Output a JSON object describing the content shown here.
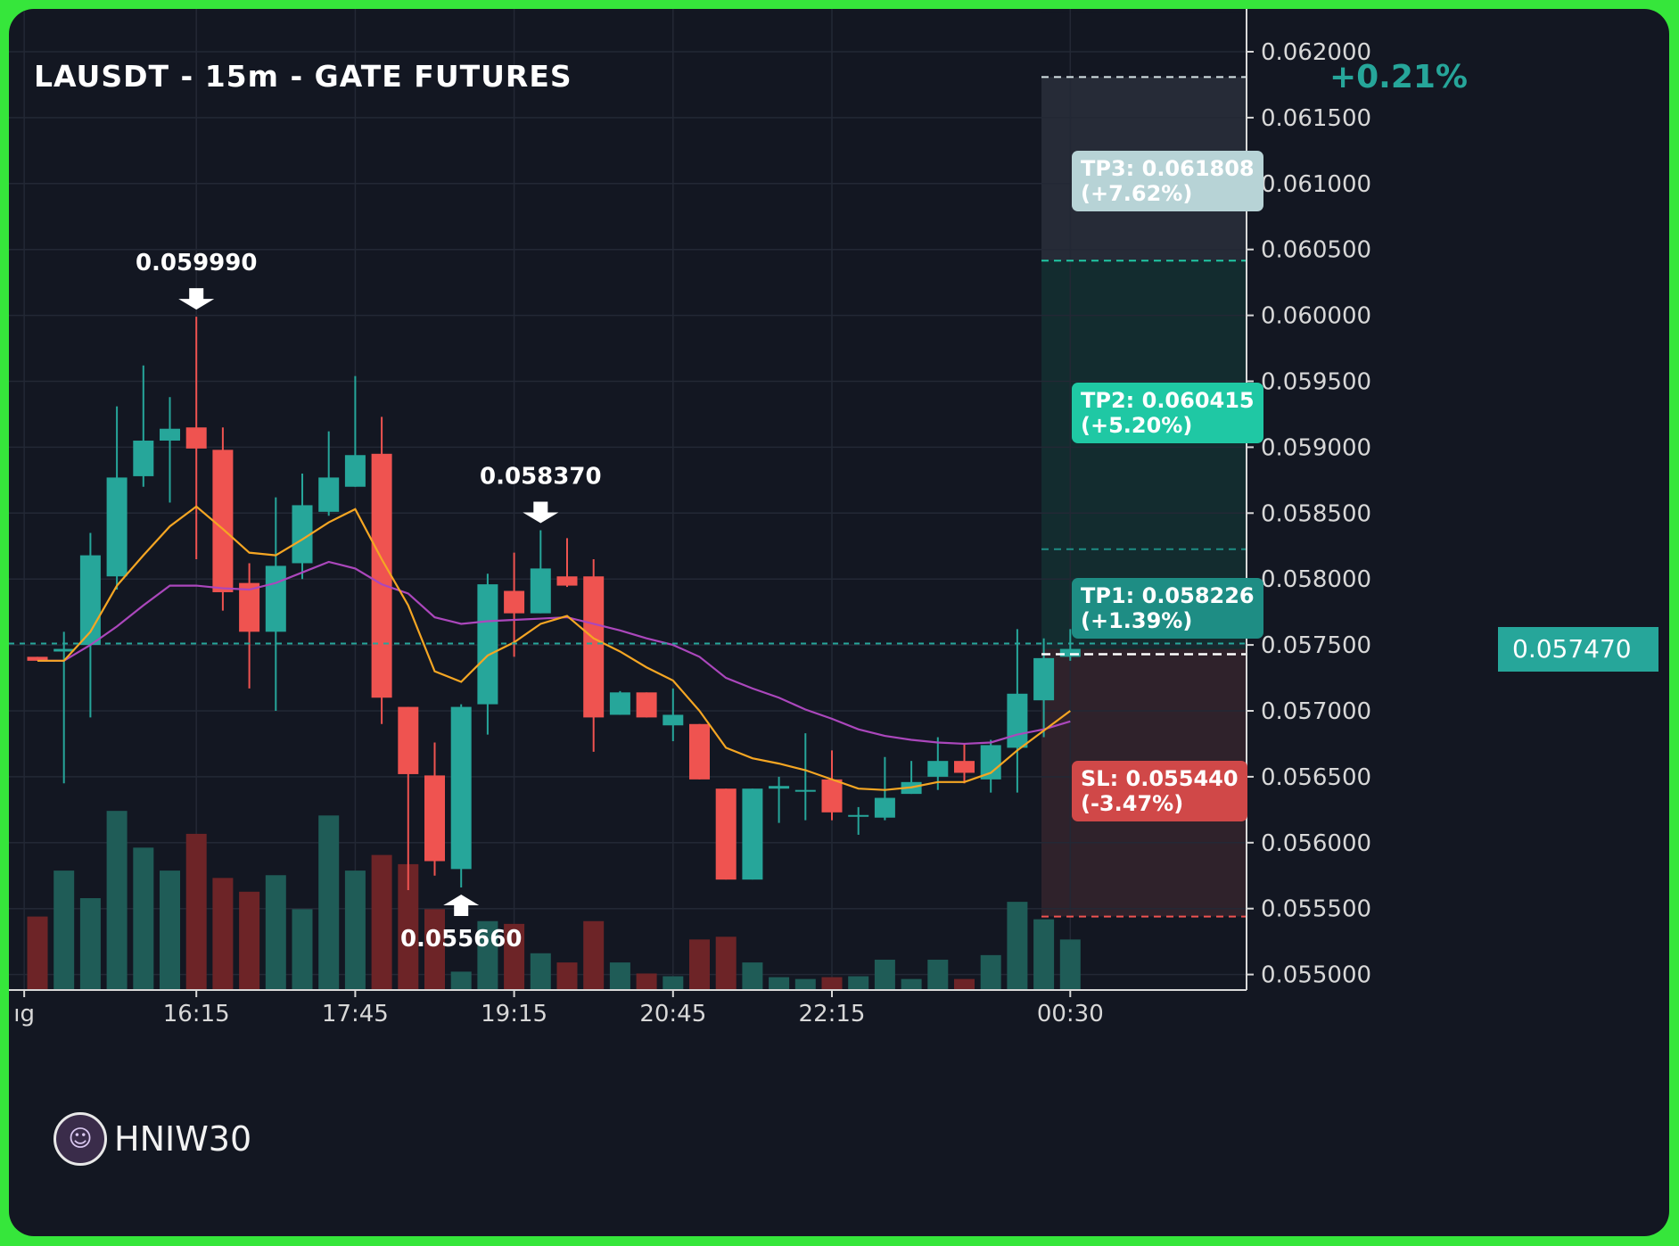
{
  "header": {
    "title": "LAUSDT - 15m - GATE FUTURES",
    "change": "+0.21%"
  },
  "watermark": {
    "name": "HNIW30",
    "avatar_icon": "avatar-icon"
  },
  "current_price": "0.057470",
  "targets": [
    {
      "label": "TP3: 0.061808\n(+7.62%)",
      "price": 0.061808,
      "color": "#b7d3d6"
    },
    {
      "label": "TP2: 0.060415\n(+5.20%)",
      "price": 0.060415,
      "color": "#1fc8a4"
    },
    {
      "label": "TP1: 0.058226\n(+1.39%)",
      "price": 0.058226,
      "color": "#1e8d84"
    },
    {
      "label": "SL: 0.055440\n(-3.47%)",
      "price": 0.05544,
      "color": "#d04848"
    }
  ],
  "markers": [
    {
      "label": "0.059990",
      "index": 6,
      "price": 0.05999,
      "direction": "down"
    },
    {
      "label": "0.058370",
      "index": 19,
      "price": 0.05837,
      "direction": "down"
    },
    {
      "label": "0.055660",
      "index": 16,
      "price": 0.05566,
      "direction": "up"
    }
  ],
  "chart_data": {
    "type": "candlestick",
    "ylim": [
      0.0548,
      0.0623
    ],
    "y_ticks": [
      "0.062000",
      "0.061500",
      "0.061000",
      "0.060500",
      "0.060000",
      "0.059500",
      "0.059000",
      "0.058500",
      "0.058000",
      "0.057500",
      "0.057000",
      "0.056500",
      "0.056000",
      "0.055500",
      "0.055000"
    ],
    "x_ticks": [
      {
        "label": "ıg",
        "index": -0.5
      },
      {
        "label": "16:15",
        "index": 6
      },
      {
        "label": "17:45",
        "index": 12
      },
      {
        "label": "19:15",
        "index": 18
      },
      {
        "label": "20:45",
        "index": 24
      },
      {
        "label": "22:15",
        "index": 30
      },
      {
        "label": "00:30",
        "index": 39
      }
    ],
    "candles": [
      {
        "o": 0.05741,
        "h": 0.05741,
        "l": 0.05738,
        "c": 0.05738,
        "v": 8
      },
      {
        "o": 0.05745,
        "h": 0.0576,
        "l": 0.05645,
        "c": 0.05747,
        "v": 13
      },
      {
        "o": 0.0575,
        "h": 0.05835,
        "l": 0.05695,
        "c": 0.05818,
        "v": 10
      },
      {
        "o": 0.05802,
        "h": 0.05931,
        "l": 0.05792,
        "c": 0.05877,
        "v": 19.5
      },
      {
        "o": 0.05878,
        "h": 0.05962,
        "l": 0.0587,
        "c": 0.05905,
        "v": 15.5
      },
      {
        "o": 0.05905,
        "h": 0.05938,
        "l": 0.05858,
        "c": 0.05914,
        "v": 13
      },
      {
        "o": 0.05915,
        "h": 0.05999,
        "l": 0.05815,
        "c": 0.05899,
        "v": 17
      },
      {
        "o": 0.05898,
        "h": 0.05915,
        "l": 0.05776,
        "c": 0.0579,
        "v": 12.2
      },
      {
        "o": 0.05797,
        "h": 0.05812,
        "l": 0.05717,
        "c": 0.0576,
        "v": 10.7
      },
      {
        "o": 0.0576,
        "h": 0.05862,
        "l": 0.057,
        "c": 0.0581,
        "v": 12.5
      },
      {
        "o": 0.05812,
        "h": 0.0588,
        "l": 0.058,
        "c": 0.05856,
        "v": 8.8
      },
      {
        "o": 0.05851,
        "h": 0.05912,
        "l": 0.05848,
        "c": 0.05877,
        "v": 19
      },
      {
        "o": 0.0587,
        "h": 0.05954,
        "l": 0.0587,
        "c": 0.05894,
        "v": 13
      },
      {
        "o": 0.05895,
        "h": 0.05923,
        "l": 0.0569,
        "c": 0.0571,
        "v": 14.7
      },
      {
        "o": 0.05703,
        "h": 0.05703,
        "l": 0.05564,
        "c": 0.05652,
        "v": 13.7
      },
      {
        "o": 0.05651,
        "h": 0.05676,
        "l": 0.05575,
        "c": 0.05586,
        "v": 8.8
      },
      {
        "o": 0.0558,
        "h": 0.05705,
        "l": 0.05566,
        "c": 0.05703,
        "v": 2
      },
      {
        "o": 0.05705,
        "h": 0.05804,
        "l": 0.05682,
        "c": 0.05796,
        "v": 7.5
      },
      {
        "o": 0.05791,
        "h": 0.0582,
        "l": 0.05741,
        "c": 0.05774,
        "v": 7.2
      },
      {
        "o": 0.05774,
        "h": 0.05837,
        "l": 0.05774,
        "c": 0.05808,
        "v": 4
      },
      {
        "o": 0.05802,
        "h": 0.05831,
        "l": 0.05794,
        "c": 0.05795,
        "v": 3
      },
      {
        "o": 0.05802,
        "h": 0.05815,
        "l": 0.05669,
        "c": 0.05695,
        "v": 7.5
      },
      {
        "o": 0.05697,
        "h": 0.05715,
        "l": 0.05697,
        "c": 0.05714,
        "v": 3
      },
      {
        "o": 0.05714,
        "h": 0.05714,
        "l": 0.05695,
        "c": 0.05695,
        "v": 1.8
      },
      {
        "o": 0.05689,
        "h": 0.05717,
        "l": 0.05677,
        "c": 0.05697,
        "v": 1.5
      },
      {
        "o": 0.0569,
        "h": 0.0569,
        "l": 0.05648,
        "c": 0.05648,
        "v": 5.5
      },
      {
        "o": 0.05641,
        "h": 0.05641,
        "l": 0.05572,
        "c": 0.05572,
        "v": 5.8
      },
      {
        "o": 0.05572,
        "h": 0.05641,
        "l": 0.05572,
        "c": 0.05641,
        "v": 3
      },
      {
        "o": 0.05641,
        "h": 0.0565,
        "l": 0.05615,
        "c": 0.05643,
        "v": 1.4
      },
      {
        "o": 0.0564,
        "h": 0.05683,
        "l": 0.05617,
        "c": 0.0564,
        "v": 1.2
      },
      {
        "o": 0.05648,
        "h": 0.0567,
        "l": 0.05617,
        "c": 0.05623,
        "v": 1.4
      },
      {
        "o": 0.0562,
        "h": 0.05627,
        "l": 0.05606,
        "c": 0.05621,
        "v": 1.5
      },
      {
        "o": 0.05619,
        "h": 0.05665,
        "l": 0.05617,
        "c": 0.05634,
        "v": 3.3
      },
      {
        "o": 0.05637,
        "h": 0.05662,
        "l": 0.05637,
        "c": 0.05646,
        "v": 1.2
      },
      {
        "o": 0.0565,
        "h": 0.0568,
        "l": 0.0564,
        "c": 0.05662,
        "v": 3.3
      },
      {
        "o": 0.05662,
        "h": 0.05675,
        "l": 0.05645,
        "c": 0.05653,
        "v": 1.2
      },
      {
        "o": 0.05648,
        "h": 0.05678,
        "l": 0.05638,
        "c": 0.05674,
        "v": 3.8
      },
      {
        "o": 0.05672,
        "h": 0.05762,
        "l": 0.05638,
        "c": 0.05713,
        "v": 9.6
      },
      {
        "o": 0.05708,
        "h": 0.05755,
        "l": 0.0568,
        "c": 0.0574,
        "v": 7.7
      },
      {
        "o": 0.05741,
        "h": 0.05762,
        "l": 0.05738,
        "c": 0.05747,
        "v": 5.5
      }
    ],
    "ma_fast": [
      0.05738,
      0.05738,
      0.0576,
      0.05795,
      0.05818,
      0.0584,
      0.05855,
      0.05838,
      0.0582,
      0.05818,
      0.0583,
      0.05843,
      0.05853,
      0.05815,
      0.0578,
      0.0573,
      0.05722,
      0.05742,
      0.05752,
      0.05766,
      0.05772,
      0.05755,
      0.05745,
      0.05733,
      0.05723,
      0.057,
      0.05672,
      0.05664,
      0.0566,
      0.05655,
      0.05648,
      0.05641,
      0.0564,
      0.05642,
      0.05646,
      0.05646,
      0.05653,
      0.0567,
      0.05685,
      0.057
    ],
    "ma_slow": [
      0.05738,
      0.05738,
      0.0575,
      0.05764,
      0.0578,
      0.05795,
      0.05795,
      0.05793,
      0.05792,
      0.05797,
      0.05805,
      0.05813,
      0.05808,
      0.05796,
      0.05789,
      0.05771,
      0.05766,
      0.05768,
      0.05769,
      0.0577,
      0.05771,
      0.05766,
      0.05761,
      0.05755,
      0.0575,
      0.05741,
      0.05725,
      0.05717,
      0.0571,
      0.05701,
      0.05694,
      0.05686,
      0.05681,
      0.05678,
      0.05676,
      0.05675,
      0.05676,
      0.05682,
      0.05686,
      0.05692
    ],
    "colors": {
      "up": "#26a69a",
      "down": "#ef5350",
      "ma_fast": "#f5a623",
      "ma_slow": "#ab47bc"
    }
  }
}
